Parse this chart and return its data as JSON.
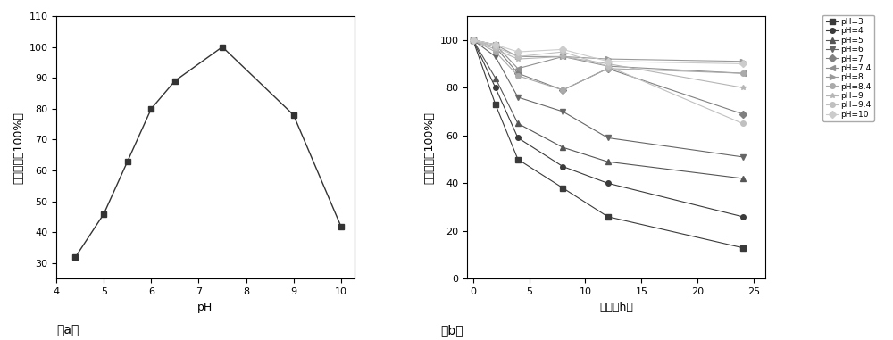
{
  "chart_a": {
    "x": [
      4.4,
      5.0,
      5.5,
      6.0,
      6.5,
      7.5,
      9.0,
      10.0
    ],
    "y": [
      32,
      46,
      63,
      80,
      89,
      100,
      78,
      42
    ],
    "xlabel": "pH",
    "ylabel": "相对酶活（100%）",
    "ylim": [
      25,
      110
    ],
    "yticks": [
      30,
      40,
      50,
      60,
      70,
      80,
      90,
      100,
      110
    ],
    "xticks": [
      4,
      5,
      6,
      7,
      8,
      9,
      10
    ],
    "color": "#333333",
    "marker": "s",
    "markersize": 5,
    "linewidth": 1.0
  },
  "chart_b": {
    "time_points": [
      0,
      2,
      4,
      8,
      12,
      24
    ],
    "series": [
      {
        "label": "pH=3",
        "values": [
          100,
          73,
          50,
          38,
          26,
          13
        ],
        "marker": "s",
        "color": "#3a3a3a"
      },
      {
        "label": "pH=4",
        "values": [
          100,
          80,
          59,
          47,
          40,
          26
        ],
        "marker": "o",
        "color": "#3a3a3a"
      },
      {
        "label": "pH=5",
        "values": [
          100,
          84,
          65,
          55,
          49,
          42
        ],
        "marker": "^",
        "color": "#555555"
      },
      {
        "label": "pH=6",
        "values": [
          100,
          93,
          76,
          70,
          59,
          51
        ],
        "marker": "v",
        "color": "#666666"
      },
      {
        "label": "pH=7",
        "values": [
          100,
          97,
          86,
          79,
          88,
          69
        ],
        "marker": "D",
        "color": "#808080"
      },
      {
        "label": "pH=7.4",
        "values": [
          100,
          98,
          88,
          93,
          89,
          86
        ],
        "marker": "<",
        "color": "#909090"
      },
      {
        "label": "pH=8",
        "values": [
          100,
          98,
          93,
          93,
          92,
          91
        ],
        "marker": ">",
        "color": "#999999"
      },
      {
        "label": "pH=8.4",
        "values": [
          100,
          95,
          85,
          79,
          88,
          86
        ],
        "marker": "o",
        "color": "#aaaaaa"
      },
      {
        "label": "pH=9",
        "values": [
          100,
          96,
          92,
          93,
          90,
          80
        ],
        "marker": "*",
        "color": "#b5b5b5"
      },
      {
        "label": "pH=9.4",
        "values": [
          100,
          97,
          93,
          95,
          89,
          65
        ],
        "marker": "o",
        "color": "#c0c0c0"
      },
      {
        "label": "pH=10",
        "values": [
          100,
          98,
          95,
          96,
          91,
          90
        ],
        "marker": "D",
        "color": "#cccccc"
      }
    ],
    "xlabel": "时间（h）",
    "ylabel": "相对酶活（100%）",
    "ylim": [
      0,
      110
    ],
    "yticks": [
      0,
      20,
      40,
      60,
      80,
      100
    ],
    "xticks": [
      0,
      5,
      10,
      15,
      20,
      25
    ],
    "xlim": [
      -0.5,
      26
    ],
    "linewidth": 0.8,
    "markersize": 4
  },
  "label_a": "（a）",
  "label_b": "（b）",
  "font_size": 9,
  "tick_font_size": 8
}
